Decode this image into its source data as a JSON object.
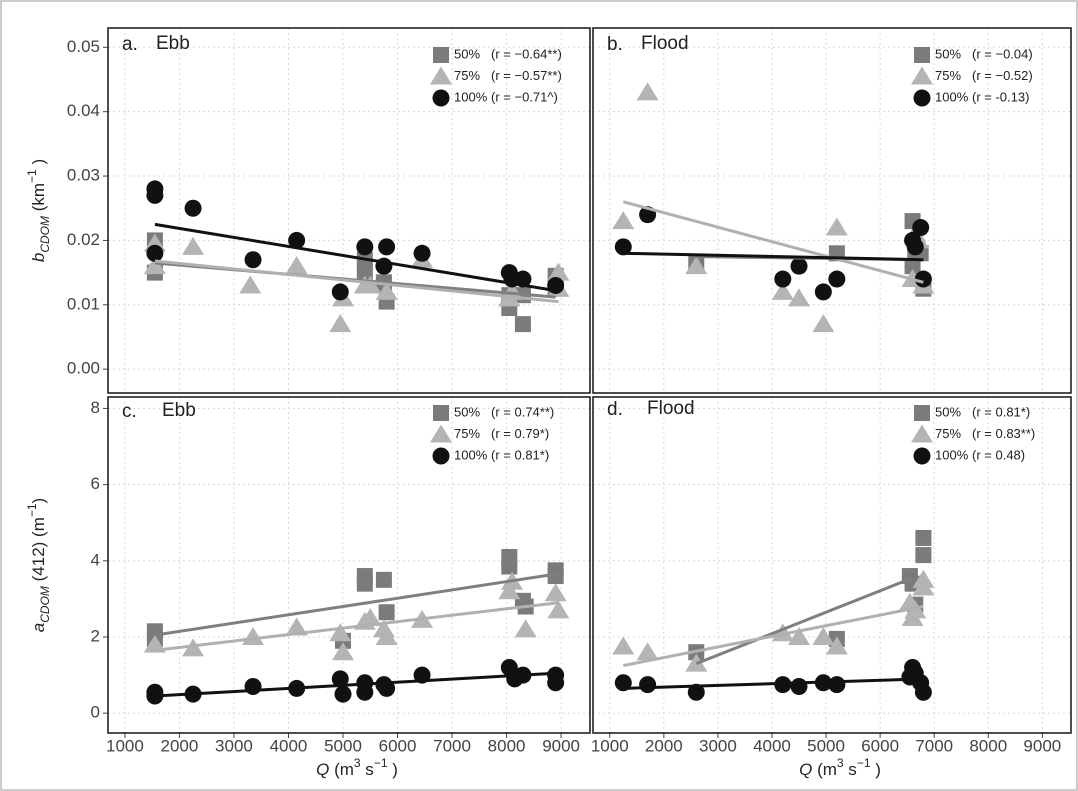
{
  "chart_data": [
    {
      "type": "scatter",
      "panel": "a.",
      "title": "Ebb",
      "ylabel": [
        {
          "text": "b",
          "shift": "none",
          "italic": true
        },
        {
          "text": "CDOM",
          "shift": "sub",
          "italic": true
        },
        {
          "text": " (km",
          "shift": "none",
          "italic": false
        },
        {
          "text": "−1",
          "shift": "sup",
          "italic": false
        },
        {
          "text": " )",
          "shift": "none",
          "italic": false
        }
      ],
      "xlim": [
        690,
        9530
      ],
      "xticks": [
        1000,
        2000,
        3000,
        4000,
        5000,
        6000,
        7000,
        8000,
        9000
      ],
      "ylim": [
        -0.0037,
        0.053
      ],
      "yticks": [
        {
          "value": 0,
          "label": "0.00"
        },
        0.01,
        0.02,
        0.03,
        0.04,
        0.05
      ],
      "x_tick_labels": false,
      "y_tick_labels": true,
      "grid": true,
      "series": [
        {
          "name": "50%",
          "stat": "(r = −0.64**)",
          "marker": "square",
          "color": "#7b7b7b",
          "line_color": "#7f7f7f",
          "x": [
            1550,
            1550,
            5400,
            5400,
            5750,
            5800,
            5750,
            8050,
            8050,
            8300,
            8300,
            8900,
            8900
          ],
          "values": [
            0.02,
            0.015,
            0.017,
            0.015,
            0.013,
            0.0105,
            0.0135,
            0.0115,
            0.0095,
            0.0115,
            0.007,
            0.0145,
            0.0125
          ],
          "fit": {
            "x": [
              1550,
              8900
            ],
            "y": [
              0.0165,
              0.0112
            ]
          }
        },
        {
          "name": "75%",
          "stat": "(r = −0.57**)",
          "marker": "triangle",
          "color": "#b4b4b4",
          "line_color": "#b0b0b0",
          "x": [
            1550,
            1550,
            2250,
            3300,
            4150,
            4950,
            5000,
            5400,
            5500,
            5800,
            6450,
            8050,
            8100,
            8950,
            8950
          ],
          "values": [
            0.0195,
            0.016,
            0.019,
            0.013,
            0.016,
            0.007,
            0.011,
            0.013,
            0.013,
            0.012,
            0.017,
            0.011,
            0.012,
            0.015,
            0.0125
          ],
          "fit": {
            "x": [
              1550,
              8950
            ],
            "y": [
              0.0168,
              0.0105
            ]
          }
        },
        {
          "name": "100%",
          "stat": "(r = −0.71^)",
          "marker": "circle",
          "color": "#111111",
          "line_color": "#111111",
          "x": [
            1550,
            1550,
            1550,
            2250,
            3350,
            4150,
            4950,
            5400,
            5750,
            5800,
            6450,
            8050,
            8100,
            8300,
            8900
          ],
          "values": [
            0.028,
            0.027,
            0.018,
            0.025,
            0.017,
            0.02,
            0.012,
            0.019,
            0.016,
            0.019,
            0.018,
            0.015,
            0.014,
            0.014,
            0.013
          ],
          "fit": {
            "x": [
              1550,
              8900
            ],
            "y": [
              0.0225,
              0.0122
            ]
          }
        }
      ]
    },
    {
      "type": "scatter",
      "panel": "b.",
      "title": "Flood",
      "xlim": [
        690,
        9530
      ],
      "xticks": [
        1000,
        2000,
        3000,
        4000,
        5000,
        6000,
        7000,
        8000,
        9000
      ],
      "ylim": [
        -0.0037,
        0.053
      ],
      "yticks": [
        {
          "value": 0,
          "label": "0.00"
        },
        0.01,
        0.02,
        0.03,
        0.04,
        0.05
      ],
      "x_tick_labels": false,
      "y_tick_labels": false,
      "grid": true,
      "series": [
        {
          "name": "50%",
          "stat": "(r = −0.04)",
          "marker": "square",
          "color": "#7b7b7b",
          "line_color": "#7f7f7f",
          "x": [
            2600,
            5200,
            6600,
            6600,
            6650,
            6750,
            6800
          ],
          "values": [
            0.0165,
            0.018,
            0.023,
            0.016,
            0.018,
            0.018,
            0.0125
          ],
          "fit": {
            "x": [
              2550,
              6800
            ],
            "y": [
              0.0175,
              0.017
            ]
          }
        },
        {
          "name": "75%",
          "stat": "(r = −0.52)",
          "marker": "triangle",
          "color": "#b4b4b4",
          "line_color": "#b0b0b0",
          "x": [
            1250,
            1700,
            2600,
            4200,
            4500,
            4950,
            5200,
            6600,
            6650,
            6700,
            6800
          ],
          "values": [
            0.023,
            0.043,
            0.016,
            0.012,
            0.011,
            0.007,
            0.022,
            0.014,
            0.021,
            0.02,
            0.013
          ],
          "fit": {
            "x": [
              1250,
              6800
            ],
            "y": [
              0.026,
              0.0135
            ]
          }
        },
        {
          "name": "100%",
          "stat": "(r = -0.13)",
          "marker": "circle",
          "color": "#111111",
          "line_color": "#111111",
          "x": [
            1250,
            1700,
            4200,
            4500,
            4950,
            5200,
            6600,
            6650,
            6750,
            6800
          ],
          "values": [
            0.019,
            0.024,
            0.014,
            0.016,
            0.012,
            0.014,
            0.02,
            0.019,
            0.022,
            0.014
          ],
          "fit": {
            "x": [
              1250,
              6800
            ],
            "y": [
              0.018,
              0.017
            ]
          }
        }
      ]
    },
    {
      "type": "scatter",
      "panel": "c.",
      "title": "Ebb",
      "xlabel": [
        {
          "text": "Q",
          "shift": "none",
          "italic": true
        },
        {
          "text": " (m",
          "shift": "none",
          "italic": false
        },
        {
          "text": "3",
          "shift": "sup",
          "italic": false
        },
        {
          "text": " s",
          "shift": "none",
          "italic": false
        },
        {
          "text": "−1",
          "shift": "sup",
          "italic": false
        },
        {
          "text": " )",
          "shift": "none",
          "italic": false
        }
      ],
      "ylabel": [
        {
          "text": "a",
          "shift": "none",
          "italic": true
        },
        {
          "text": "CDOM",
          "shift": "sub",
          "italic": true
        },
        {
          "text": " (412) (m",
          "shift": "none",
          "italic": false
        },
        {
          "text": "−1",
          "shift": "sup",
          "italic": false
        },
        {
          "text": ")",
          "shift": "none",
          "italic": false
        }
      ],
      "xlim": [
        690,
        9530
      ],
      "xticks": [
        1000,
        2000,
        3000,
        4000,
        5000,
        6000,
        7000,
        8000,
        9000
      ],
      "ylim": [
        -0.52,
        8.3
      ],
      "yticks": [
        0,
        2,
        4,
        6,
        8
      ],
      "x_tick_labels": true,
      "y_tick_labels": true,
      "grid": true,
      "series": [
        {
          "name": "50%",
          "stat": "(r = 0.74**)",
          "marker": "square",
          "color": "#7b7b7b",
          "line_color": "#7f7f7f",
          "x": [
            1550,
            1550,
            5000,
            5400,
            5400,
            5750,
            5800,
            8050,
            8050,
            8300,
            8350,
            8900,
            8900
          ],
          "values": [
            2.15,
            1.95,
            1.9,
            3.6,
            3.4,
            3.5,
            2.65,
            4.1,
            3.85,
            2.95,
            2.8,
            3.75,
            3.6
          ],
          "fit": {
            "x": [
              1550,
              8900
            ],
            "y": [
              2.05,
              3.65
            ]
          }
        },
        {
          "name": "75%",
          "stat": "(r = 0.79*)",
          "marker": "triangle",
          "color": "#b4b4b4",
          "line_color": "#b0b0b0",
          "x": [
            1550,
            2250,
            3350,
            4150,
            4950,
            5000,
            5400,
            5500,
            5750,
            5800,
            6450,
            8050,
            8100,
            8350,
            8900,
            8950
          ],
          "values": [
            1.8,
            1.7,
            2.0,
            2.25,
            2.1,
            1.6,
            2.4,
            2.5,
            2.2,
            2.0,
            2.45,
            3.2,
            3.45,
            2.2,
            3.15,
            2.7
          ],
          "fit": {
            "x": [
              1550,
              8950
            ],
            "y": [
              1.65,
              2.9
            ]
          }
        },
        {
          "name": "100%",
          "stat": "(r = 0.81*)",
          "marker": "circle",
          "color": "#111111",
          "line_color": "#111111",
          "x": [
            1550,
            1550,
            2250,
            3350,
            4150,
            4950,
            5000,
            5400,
            5400,
            5750,
            5800,
            6450,
            8050,
            8150,
            8300,
            8900,
            8900
          ],
          "values": [
            0.55,
            0.45,
            0.5,
            0.7,
            0.65,
            0.9,
            0.5,
            0.8,
            0.55,
            0.75,
            0.65,
            1.0,
            1.2,
            0.9,
            1.0,
            1.0,
            0.8
          ],
          "fit": {
            "x": [
              1550,
              8900
            ],
            "y": [
              0.45,
              1.05
            ]
          }
        }
      ]
    },
    {
      "type": "scatter",
      "panel": "d.",
      "title": "Flood",
      "xlabel": [
        {
          "text": "Q",
          "shift": "none",
          "italic": true
        },
        {
          "text": " (m",
          "shift": "none",
          "italic": false
        },
        {
          "text": "3",
          "shift": "sup",
          "italic": false
        },
        {
          "text": " s",
          "shift": "none",
          "italic": false
        },
        {
          "text": "−1",
          "shift": "sup",
          "italic": false
        },
        {
          "text": " )",
          "shift": "none",
          "italic": false
        }
      ],
      "xlim": [
        690,
        9530
      ],
      "xticks": [
        1000,
        2000,
        3000,
        4000,
        5000,
        6000,
        7000,
        8000,
        9000
      ],
      "ylim": [
        -0.52,
        8.3
      ],
      "yticks": [
        0,
        2,
        4,
        6,
        8
      ],
      "x_tick_labels": true,
      "y_tick_labels": false,
      "grid": true,
      "series": [
        {
          "name": "50%",
          "stat": "(r = 0.81*)",
          "marker": "square",
          "color": "#7b7b7b",
          "line_color": "#7f7f7f",
          "x": [
            2600,
            5200,
            6550,
            6600,
            6650,
            6800,
            6800
          ],
          "values": [
            1.6,
            1.95,
            3.6,
            3.4,
            2.85,
            4.6,
            4.15
          ],
          "fit": {
            "x": [
              2600,
              6600
            ],
            "y": [
              1.3,
              3.55
            ]
          }
        },
        {
          "name": "75%",
          "stat": "(r = 0.83**)",
          "marker": "triangle",
          "color": "#b4b4b4",
          "line_color": "#b0b0b0",
          "x": [
            1250,
            1700,
            2600,
            4200,
            4500,
            4950,
            5200,
            6550,
            6600,
            6650,
            6800,
            6800
          ],
          "values": [
            1.75,
            1.6,
            1.3,
            2.1,
            2.0,
            2.0,
            1.75,
            2.9,
            2.5,
            2.7,
            3.5,
            3.3
          ],
          "fit": {
            "x": [
              1250,
              6800
            ],
            "y": [
              1.25,
              2.8
            ]
          }
        },
        {
          "name": "100%",
          "stat": "(r = 0.48)",
          "marker": "circle",
          "color": "#111111",
          "line_color": "#111111",
          "x": [
            1250,
            1700,
            2600,
            4200,
            4500,
            4950,
            5200,
            6550,
            6600,
            6650,
            6750,
            6800
          ],
          "values": [
            0.8,
            0.75,
            0.55,
            0.75,
            0.7,
            0.8,
            0.75,
            0.95,
            1.2,
            1.05,
            0.8,
            0.55
          ],
          "fit": {
            "x": [
              1250,
              6800
            ],
            "y": [
              0.65,
              0.9
            ]
          }
        }
      ]
    }
  ]
}
